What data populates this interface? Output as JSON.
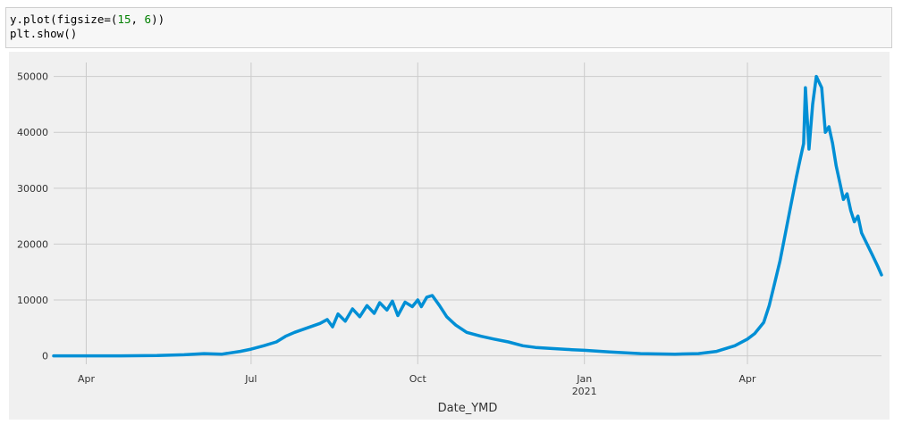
{
  "code": {
    "line1_prefix": "y.plot(figsize=(",
    "line1_num1": "15",
    "line1_sep": ", ",
    "line1_num2": "6",
    "line1_suffix": "))",
    "line2": "plt.show()"
  },
  "chart_data": {
    "type": "line",
    "xlabel": "Date_YMD",
    "ylabel": "",
    "ylim": [
      -1500,
      52500
    ],
    "y_ticks": [
      0,
      10000,
      20000,
      30000,
      40000,
      50000
    ],
    "x_range": [
      "2020-03-14",
      "2021-06-14"
    ],
    "x_ticks": [
      {
        "date": "2020-04-01",
        "label": "Apr",
        "sublabel": ""
      },
      {
        "date": "2020-07-01",
        "label": "Jul",
        "sublabel": ""
      },
      {
        "date": "2020-10-01",
        "label": "Oct",
        "sublabel": ""
      },
      {
        "date": "2021-01-01",
        "label": "Jan",
        "sublabel": "2021"
      },
      {
        "date": "2021-04-01",
        "label": "Apr",
        "sublabel": ""
      }
    ],
    "grid": true,
    "series_color": "#008fd5",
    "series": [
      {
        "name": "",
        "points": [
          [
            "2020-03-14",
            0
          ],
          [
            "2020-04-01",
            0
          ],
          [
            "2020-04-20",
            0
          ],
          [
            "2020-05-10",
            50
          ],
          [
            "2020-05-25",
            200
          ],
          [
            "2020-06-05",
            400
          ],
          [
            "2020-06-15",
            300
          ],
          [
            "2020-06-25",
            800
          ],
          [
            "2020-07-01",
            1200
          ],
          [
            "2020-07-08",
            1800
          ],
          [
            "2020-07-15",
            2500
          ],
          [
            "2020-07-20",
            3500
          ],
          [
            "2020-07-25",
            4200
          ],
          [
            "2020-08-01",
            5000
          ],
          [
            "2020-08-08",
            5800
          ],
          [
            "2020-08-12",
            6500
          ],
          [
            "2020-08-15",
            5200
          ],
          [
            "2020-08-18",
            7500
          ],
          [
            "2020-08-22",
            6200
          ],
          [
            "2020-08-26",
            8400
          ],
          [
            "2020-08-30",
            7000
          ],
          [
            "2020-09-03",
            9000
          ],
          [
            "2020-09-07",
            7600
          ],
          [
            "2020-09-10",
            9500
          ],
          [
            "2020-09-14",
            8200
          ],
          [
            "2020-09-17",
            9800
          ],
          [
            "2020-09-20",
            7200
          ],
          [
            "2020-09-24",
            9600
          ],
          [
            "2020-09-28",
            8800
          ],
          [
            "2020-10-01",
            10000
          ],
          [
            "2020-10-03",
            8800
          ],
          [
            "2020-10-06",
            10500
          ],
          [
            "2020-10-09",
            10800
          ],
          [
            "2020-10-13",
            9000
          ],
          [
            "2020-10-17",
            7000
          ],
          [
            "2020-10-22",
            5500
          ],
          [
            "2020-10-28",
            4200
          ],
          [
            "2020-11-05",
            3500
          ],
          [
            "2020-11-12",
            3000
          ],
          [
            "2020-11-20",
            2500
          ],
          [
            "2020-11-28",
            1800
          ],
          [
            "2020-12-05",
            1500
          ],
          [
            "2020-12-15",
            1300
          ],
          [
            "2020-12-25",
            1100
          ],
          [
            "2021-01-01",
            1000
          ],
          [
            "2021-01-15",
            700
          ],
          [
            "2021-02-01",
            400
          ],
          [
            "2021-02-20",
            300
          ],
          [
            "2021-03-05",
            400
          ],
          [
            "2021-03-15",
            800
          ],
          [
            "2021-03-25",
            1800
          ],
          [
            "2021-04-01",
            3000
          ],
          [
            "2021-04-05",
            4000
          ],
          [
            "2021-04-10",
            6000
          ],
          [
            "2021-04-13",
            9000
          ],
          [
            "2021-04-16",
            13000
          ],
          [
            "2021-04-19",
            17000
          ],
          [
            "2021-04-22",
            22000
          ],
          [
            "2021-04-25",
            27000
          ],
          [
            "2021-04-28",
            32000
          ],
          [
            "2021-04-30",
            35000
          ],
          [
            "2021-05-02",
            38000
          ],
          [
            "2021-05-03",
            48000
          ],
          [
            "2021-05-05",
            37000
          ],
          [
            "2021-05-07",
            45000
          ],
          [
            "2021-05-09",
            50000
          ],
          [
            "2021-05-12",
            48000
          ],
          [
            "2021-05-14",
            40000
          ],
          [
            "2021-05-16",
            41000
          ],
          [
            "2021-05-18",
            38000
          ],
          [
            "2021-05-20",
            34000
          ],
          [
            "2021-05-22",
            31000
          ],
          [
            "2021-05-24",
            28000
          ],
          [
            "2021-05-26",
            29000
          ],
          [
            "2021-05-28",
            26000
          ],
          [
            "2021-05-30",
            24000
          ],
          [
            "2021-06-01",
            25000
          ],
          [
            "2021-06-03",
            22000
          ],
          [
            "2021-06-06",
            20000
          ],
          [
            "2021-06-09",
            18000
          ],
          [
            "2021-06-12",
            16000
          ],
          [
            "2021-06-14",
            14500
          ]
        ]
      }
    ]
  }
}
